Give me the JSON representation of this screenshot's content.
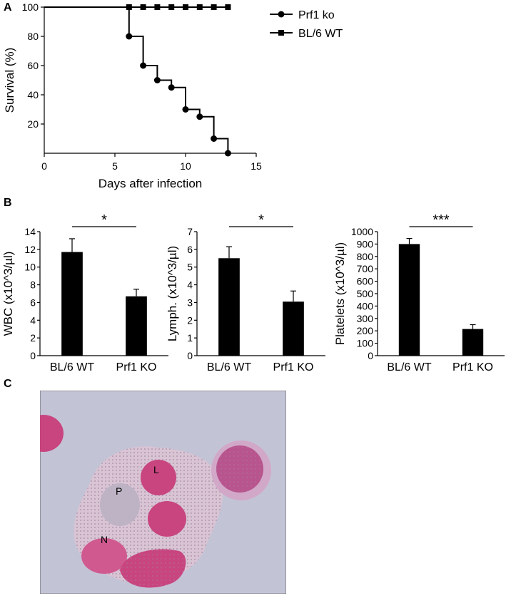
{
  "panels": {
    "a": "A",
    "b": "B",
    "c": "C"
  },
  "chart_data": [
    {
      "type": "line",
      "step": true,
      "xlabel": "Days after infection",
      "ylabel": "Survival (%)",
      "xlim": [
        0,
        15
      ],
      "ylim": [
        0,
        100
      ],
      "xticks": [
        "0",
        "5",
        "10",
        "15"
      ],
      "yticks": [
        "20",
        "40",
        "60",
        "80",
        "100"
      ],
      "legend_position": "top-right",
      "series": [
        {
          "name": "Prf1 ko",
          "marker": "circle",
          "x": [
            6,
            7,
            8,
            9,
            10,
            11,
            12,
            13
          ],
          "y": [
            80,
            60,
            50,
            45,
            30,
            25,
            10,
            0
          ]
        },
        {
          "name": "BL/6 WT",
          "marker": "square",
          "x": [
            6,
            7,
            8,
            9,
            10,
            11,
            12,
            13
          ],
          "y": [
            100,
            100,
            100,
            100,
            100,
            100,
            100,
            100
          ]
        }
      ]
    },
    {
      "type": "bar",
      "ylabel": "WBC (x10^3/µl)",
      "categories": [
        "BL/6 WT",
        "Prf1 KO"
      ],
      "values": [
        11.7,
        6.7
      ],
      "errors": [
        1.5,
        0.8
      ],
      "ylim": [
        0,
        14
      ],
      "yticks": [
        "0",
        "2",
        "4",
        "6",
        "8",
        "10",
        "12",
        "14"
      ],
      "significance": "*"
    },
    {
      "type": "bar",
      "ylabel": "Lymph. (x10^3/µl)",
      "categories": [
        "BL/6 WT",
        "Prf1 KO"
      ],
      "values": [
        5.5,
        3.05
      ],
      "errors": [
        0.65,
        0.6
      ],
      "ylim": [
        0,
        7
      ],
      "yticks": [
        "0",
        "1",
        "2",
        "3",
        "4",
        "5",
        "6",
        "7"
      ],
      "significance": "*"
    },
    {
      "type": "bar",
      "ylabel": "Platelets (x10^3/µl)",
      "categories": [
        "BL/6 WT",
        "Prf1 KO"
      ],
      "values": [
        900,
        215
      ],
      "errors": [
        45,
        35
      ],
      "ylim": [
        0,
        1000
      ],
      "yticks": [
        "0",
        "100",
        "200",
        "300",
        "400",
        "500",
        "600",
        "700",
        "800",
        "900",
        "1000"
      ],
      "significance": "***"
    }
  ],
  "micrograph": {
    "labels": {
      "l": "L",
      "p": "P",
      "n": "N"
    },
    "colors": {
      "background": "#c3c3d6",
      "cytoplasm": "#d9c4d4",
      "nucleus": "#c8457f",
      "granule": "#b8548e"
    }
  }
}
